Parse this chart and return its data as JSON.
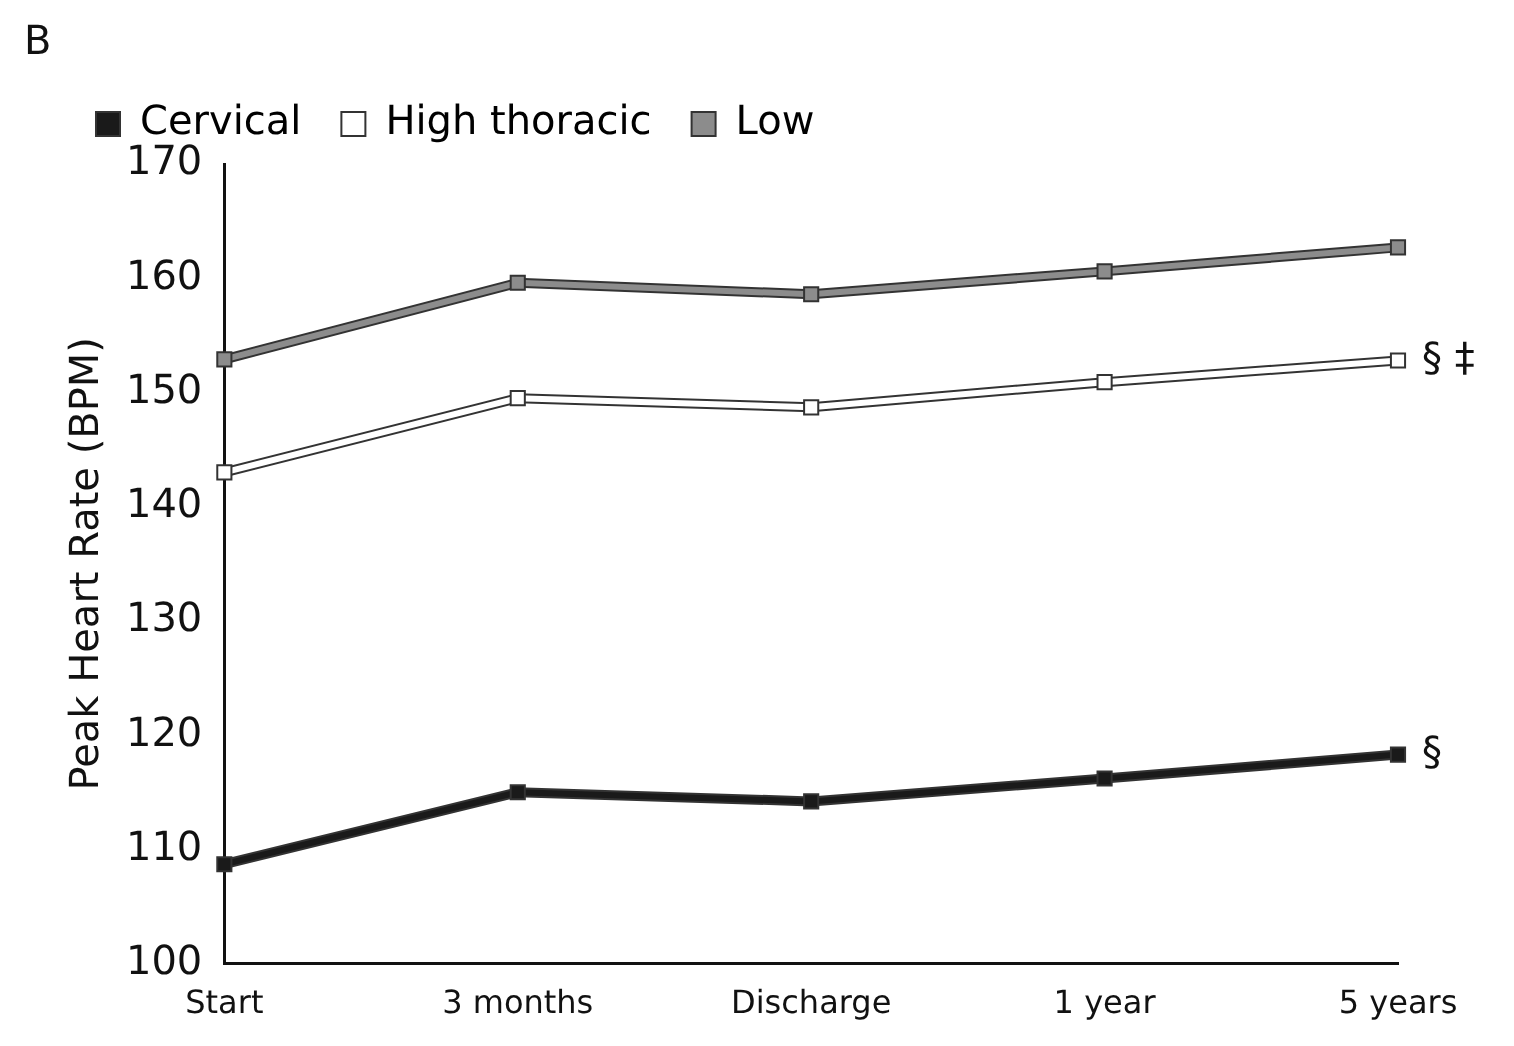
{
  "chart_data": {
    "type": "line",
    "ylabel": "Peak Heart Rate (BPM)",
    "categories": [
      "Start",
      "3 months",
      "Discharge",
      "1 year",
      "5 years"
    ],
    "series": [
      {
        "name": "Cervical",
        "color": "#1a1a1a",
        "values": [
          108.7,
          115,
          114.2,
          116.2,
          118.3
        ]
      },
      {
        "name": "High thoracic",
        "color": "#ffffff",
        "values": [
          143,
          149.5,
          148.7,
          150.9,
          152.8
        ]
      },
      {
        "name": "Low",
        "color": "#8c8c8c",
        "values": [
          152.9,
          159.6,
          158.6,
          160.6,
          162.7
        ]
      }
    ],
    "ylim": [
      100,
      170
    ],
    "yticks": [
      100,
      110,
      120,
      130,
      140,
      150,
      160,
      170
    ],
    "grid": false,
    "legend": "top",
    "marker": "square",
    "line_style": "solid",
    "annotations": [
      "B",
      {
        "text": "§ ‡",
        "x": "5 years",
        "y": 152.8
      },
      {
        "text": "§",
        "x": "5 years",
        "y": 118.3
      }
    ]
  }
}
